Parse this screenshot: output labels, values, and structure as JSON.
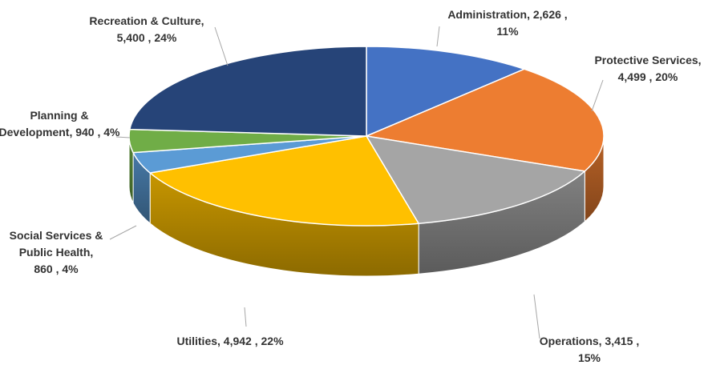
{
  "chart_data": {
    "type": "pie",
    "title": "",
    "slices": [
      {
        "label": "Administration",
        "value": 2626,
        "percent": 11,
        "color": "#4472c4",
        "text_lines": [
          "Administration,  2,626 ,",
          "11%"
        ]
      },
      {
        "label": "Protective Services",
        "value": 4499,
        "percent": 20,
        "color": "#ed7d31",
        "text_lines": [
          "Protective Services,",
          "4,499 , 20%"
        ]
      },
      {
        "label": "Operations",
        "value": 3415,
        "percent": 15,
        "color": "#a5a5a5",
        "text_lines": [
          "Operations,  3,415 ,",
          "15%"
        ]
      },
      {
        "label": "Utilities",
        "value": 4942,
        "percent": 22,
        "color": "#ffc000",
        "text_lines": [
          "Utilities,  4,942 , 22%"
        ]
      },
      {
        "label": "Social Services & Public Health",
        "value": 860,
        "percent": 4,
        "color": "#5b9bd5",
        "text_lines": [
          "Social Services &",
          "Public Health,",
          "860 , 4%"
        ]
      },
      {
        "label": "Planning & Development",
        "value": 940,
        "percent": 4,
        "color": "#70ad47",
        "text_lines": [
          "Planning &",
          "Development,  940 , 4%"
        ]
      },
      {
        "label": "Recreation & Culture",
        "value": 5400,
        "percent": 24,
        "color": "#264478",
        "text_lines": [
          "Recreation & Culture,",
          "5,400 , 24%"
        ]
      }
    ],
    "legend": "none",
    "three_d": true
  }
}
